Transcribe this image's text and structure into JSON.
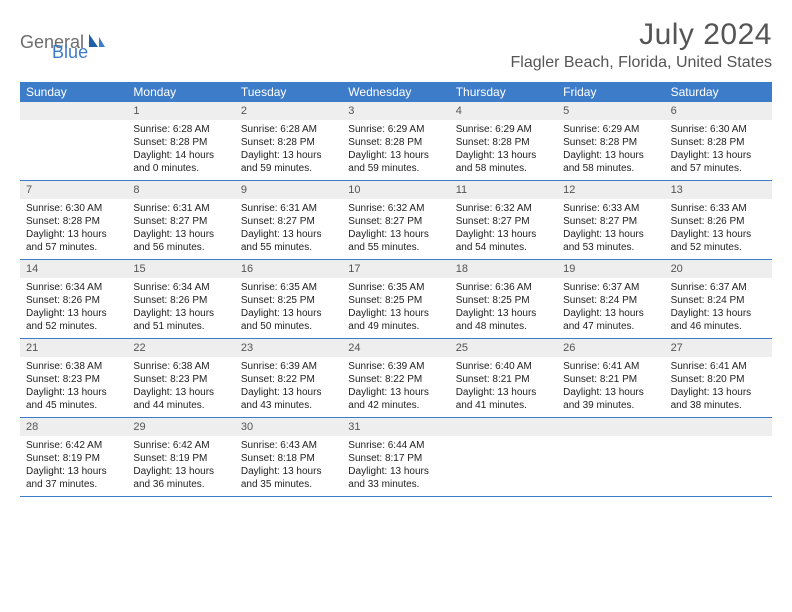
{
  "brand": {
    "part1": "General",
    "part2": "Blue"
  },
  "title": "July 2024",
  "location": "Flagler Beach, Florida, United States",
  "weekdays": [
    "Sunday",
    "Monday",
    "Tuesday",
    "Wednesday",
    "Thursday",
    "Friday",
    "Saturday"
  ],
  "start_offset": 1,
  "colors": {
    "header_bg": "#3d7cc9",
    "daybar_bg": "#eeeeee",
    "text": "#333333",
    "brand_gray": "#6d6d6d",
    "brand_blue": "#3d7cc9"
  },
  "days": [
    {
      "n": 1,
      "sunrise": "6:28 AM",
      "sunset": "8:28 PM",
      "daylight": "14 hours and 0 minutes."
    },
    {
      "n": 2,
      "sunrise": "6:28 AM",
      "sunset": "8:28 PM",
      "daylight": "13 hours and 59 minutes."
    },
    {
      "n": 3,
      "sunrise": "6:29 AM",
      "sunset": "8:28 PM",
      "daylight": "13 hours and 59 minutes."
    },
    {
      "n": 4,
      "sunrise": "6:29 AM",
      "sunset": "8:28 PM",
      "daylight": "13 hours and 58 minutes."
    },
    {
      "n": 5,
      "sunrise": "6:29 AM",
      "sunset": "8:28 PM",
      "daylight": "13 hours and 58 minutes."
    },
    {
      "n": 6,
      "sunrise": "6:30 AM",
      "sunset": "8:28 PM",
      "daylight": "13 hours and 57 minutes."
    },
    {
      "n": 7,
      "sunrise": "6:30 AM",
      "sunset": "8:28 PM",
      "daylight": "13 hours and 57 minutes."
    },
    {
      "n": 8,
      "sunrise": "6:31 AM",
      "sunset": "8:27 PM",
      "daylight": "13 hours and 56 minutes."
    },
    {
      "n": 9,
      "sunrise": "6:31 AM",
      "sunset": "8:27 PM",
      "daylight": "13 hours and 55 minutes."
    },
    {
      "n": 10,
      "sunrise": "6:32 AM",
      "sunset": "8:27 PM",
      "daylight": "13 hours and 55 minutes."
    },
    {
      "n": 11,
      "sunrise": "6:32 AM",
      "sunset": "8:27 PM",
      "daylight": "13 hours and 54 minutes."
    },
    {
      "n": 12,
      "sunrise": "6:33 AM",
      "sunset": "8:27 PM",
      "daylight": "13 hours and 53 minutes."
    },
    {
      "n": 13,
      "sunrise": "6:33 AM",
      "sunset": "8:26 PM",
      "daylight": "13 hours and 52 minutes."
    },
    {
      "n": 14,
      "sunrise": "6:34 AM",
      "sunset": "8:26 PM",
      "daylight": "13 hours and 52 minutes."
    },
    {
      "n": 15,
      "sunrise": "6:34 AM",
      "sunset": "8:26 PM",
      "daylight": "13 hours and 51 minutes."
    },
    {
      "n": 16,
      "sunrise": "6:35 AM",
      "sunset": "8:25 PM",
      "daylight": "13 hours and 50 minutes."
    },
    {
      "n": 17,
      "sunrise": "6:35 AM",
      "sunset": "8:25 PM",
      "daylight": "13 hours and 49 minutes."
    },
    {
      "n": 18,
      "sunrise": "6:36 AM",
      "sunset": "8:25 PM",
      "daylight": "13 hours and 48 minutes."
    },
    {
      "n": 19,
      "sunrise": "6:37 AM",
      "sunset": "8:24 PM",
      "daylight": "13 hours and 47 minutes."
    },
    {
      "n": 20,
      "sunrise": "6:37 AM",
      "sunset": "8:24 PM",
      "daylight": "13 hours and 46 minutes."
    },
    {
      "n": 21,
      "sunrise": "6:38 AM",
      "sunset": "8:23 PM",
      "daylight": "13 hours and 45 minutes."
    },
    {
      "n": 22,
      "sunrise": "6:38 AM",
      "sunset": "8:23 PM",
      "daylight": "13 hours and 44 minutes."
    },
    {
      "n": 23,
      "sunrise": "6:39 AM",
      "sunset": "8:22 PM",
      "daylight": "13 hours and 43 minutes."
    },
    {
      "n": 24,
      "sunrise": "6:39 AM",
      "sunset": "8:22 PM",
      "daylight": "13 hours and 42 minutes."
    },
    {
      "n": 25,
      "sunrise": "6:40 AM",
      "sunset": "8:21 PM",
      "daylight": "13 hours and 41 minutes."
    },
    {
      "n": 26,
      "sunrise": "6:41 AM",
      "sunset": "8:21 PM",
      "daylight": "13 hours and 39 minutes."
    },
    {
      "n": 27,
      "sunrise": "6:41 AM",
      "sunset": "8:20 PM",
      "daylight": "13 hours and 38 minutes."
    },
    {
      "n": 28,
      "sunrise": "6:42 AM",
      "sunset": "8:19 PM",
      "daylight": "13 hours and 37 minutes."
    },
    {
      "n": 29,
      "sunrise": "6:42 AM",
      "sunset": "8:19 PM",
      "daylight": "13 hours and 36 minutes."
    },
    {
      "n": 30,
      "sunrise": "6:43 AM",
      "sunset": "8:18 PM",
      "daylight": "13 hours and 35 minutes."
    },
    {
      "n": 31,
      "sunrise": "6:44 AM",
      "sunset": "8:17 PM",
      "daylight": "13 hours and 33 minutes."
    }
  ],
  "labels": {
    "sunrise": "Sunrise:",
    "sunset": "Sunset:",
    "daylight": "Daylight:"
  }
}
